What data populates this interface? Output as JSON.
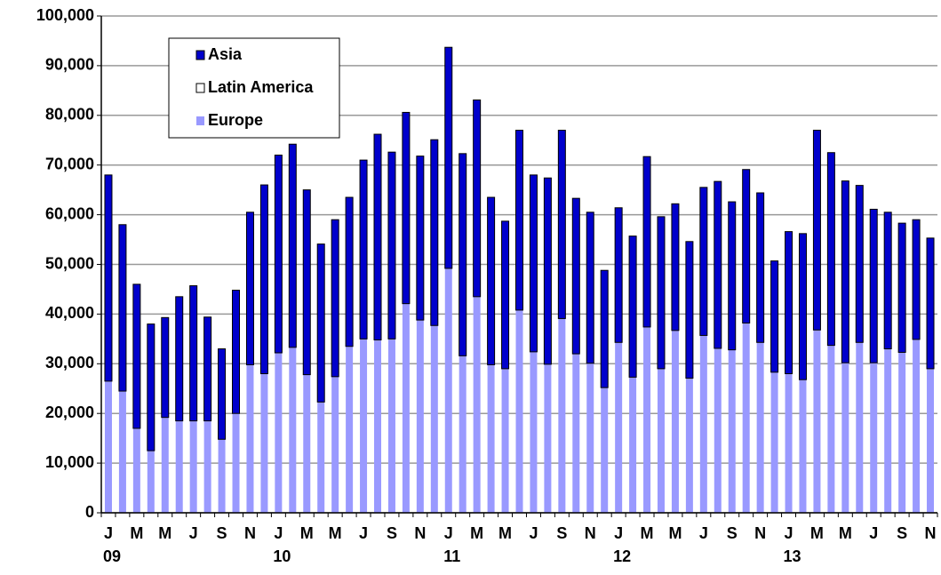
{
  "chart_data": {
    "type": "stacked_bar",
    "categories": [
      "J",
      null,
      "M",
      null,
      "M",
      null,
      "J",
      null,
      "S",
      null,
      "N",
      null,
      "J",
      null,
      "M",
      null,
      "M",
      null,
      "J",
      null,
      "S",
      null,
      "N",
      null,
      "J",
      null,
      "M",
      null,
      "M",
      null,
      "J",
      null,
      "S",
      null,
      "N",
      null,
      "J",
      null,
      "M",
      null,
      "M",
      null,
      "J",
      null,
      "S",
      null,
      "N",
      null,
      "J",
      null,
      "M",
      null,
      "M",
      null,
      "J",
      null,
      "S",
      null,
      "N"
    ],
    "years": [
      "09",
      null,
      null,
      null,
      null,
      null,
      null,
      null,
      null,
      null,
      null,
      null,
      "10",
      null,
      null,
      null,
      null,
      null,
      null,
      null,
      null,
      null,
      null,
      null,
      "11",
      null,
      null,
      null,
      null,
      null,
      null,
      null,
      null,
      null,
      null,
      null,
      "12",
      null,
      null,
      null,
      null,
      null,
      null,
      null,
      null,
      null,
      null,
      null,
      "13",
      null,
      null,
      null,
      null,
      null,
      null,
      null,
      null,
      null,
      null
    ],
    "series": [
      {
        "name": "Europe",
        "color": "#9999ff",
        "values": [
          26500,
          24500,
          17000,
          12500,
          19200,
          18500,
          18500,
          18500,
          14800,
          20000,
          29800,
          28000,
          32200,
          33300,
          27800,
          22300,
          27400,
          33500,
          35000,
          34800,
          35000,
          42100,
          38800,
          37700,
          49200,
          31600,
          43500,
          29800,
          29000,
          40800,
          32400,
          29900,
          39100,
          32000,
          30100,
          25200,
          34300,
          27300,
          37400,
          29000,
          36700,
          27100,
          35700,
          33100,
          32800,
          38200,
          34300,
          28300,
          28000,
          26800,
          36800,
          33700,
          30200,
          34300,
          30200,
          33000,
          32300,
          34900,
          29000
        ]
      },
      {
        "name": "Latin America",
        "color": "#ffffff",
        "values": [
          0,
          0,
          0,
          0,
          0,
          0,
          0,
          0,
          0,
          0,
          0,
          0,
          0,
          0,
          0,
          0,
          0,
          0,
          0,
          0,
          0,
          0,
          0,
          0,
          0,
          0,
          0,
          0,
          0,
          0,
          0,
          0,
          0,
          0,
          0,
          0,
          0,
          0,
          0,
          0,
          0,
          0,
          0,
          0,
          0,
          0,
          0,
          0,
          0,
          0,
          0,
          0,
          0,
          0,
          0,
          0,
          0,
          0,
          0
        ]
      },
      {
        "name": "Asia",
        "color": "#0000cc",
        "values": [
          41500,
          33500,
          29000,
          25500,
          20100,
          25000,
          27200,
          20900,
          18200,
          24800,
          30700,
          38000,
          39800,
          40900,
          37200,
          31800,
          31600,
          30000,
          36000,
          41400,
          37600,
          38500,
          33000,
          37400,
          44500,
          40700,
          39600,
          33700,
          29700,
          36200,
          35600,
          37500,
          37900,
          31300,
          30400,
          23600,
          27100,
          28400,
          34300,
          30600,
          25500,
          27500,
          29800,
          33600,
          29800,
          30900,
          30100,
          22400,
          28600,
          29400,
          40200,
          38800,
          36600,
          31600,
          30900,
          27500,
          26000,
          24100,
          26300
        ]
      }
    ],
    "ylim": [
      0,
      100000
    ],
    "yticks": [
      {
        "value": 0,
        "label": "0"
      },
      {
        "value": 10000,
        "label": "10,000"
      },
      {
        "value": 20000,
        "label": "20,000"
      },
      {
        "value": 30000,
        "label": "30,000"
      },
      {
        "value": 40000,
        "label": "40,000"
      },
      {
        "value": 50000,
        "label": "50,000"
      },
      {
        "value": 60000,
        "label": "60,000"
      },
      {
        "value": 70000,
        "label": "70,000"
      },
      {
        "value": 80000,
        "label": "80,000"
      },
      {
        "value": 90000,
        "label": "90,000"
      },
      {
        "value": 100000,
        "label": "100,000"
      }
    ],
    "grid": true,
    "legend": "upper left"
  }
}
